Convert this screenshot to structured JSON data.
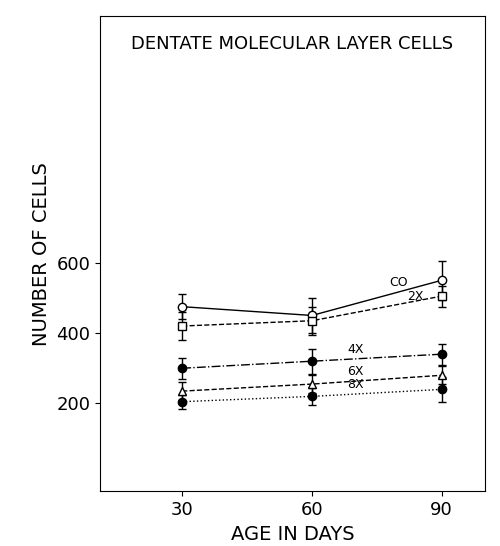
{
  "chart_data": {
    "type": "line",
    "title": "DENTATE MOLECULAR LAYER CELLS",
    "x_label": "AGE IN DAYS",
    "y_label": "NUMBER OF CELLS",
    "x": [
      30,
      60,
      90
    ],
    "xlim": [
      11,
      100
    ],
    "xticks": [
      30,
      60,
      90
    ],
    "ylim": [
      -50,
      1300
    ],
    "yticks": [
      200,
      400,
      600
    ],
    "grid": false,
    "series": [
      {
        "name": "CO",
        "color": "#000000",
        "marker": "o_open",
        "line_style": "solid",
        "values": [
          475,
          450,
          550
        ],
        "errors": [
          35,
          50,
          55
        ]
      },
      {
        "name": "2X",
        "color": "#000000",
        "marker": "s_open",
        "line_style": "dashed",
        "values": [
          420,
          435,
          505
        ],
        "errors": [
          40,
          40,
          30
        ]
      },
      {
        "name": "4X",
        "color": "#000000",
        "marker": "o_filled",
        "line_style": "dashdot",
        "values": [
          300,
          320,
          340
        ],
        "errors": [
          30,
          35,
          30
        ]
      },
      {
        "name": "6X",
        "color": "#000000",
        "marker": "^_open",
        "line_style": "dashed",
        "values": [
          235,
          255,
          280
        ],
        "errors": [
          25,
          25,
          25
        ]
      },
      {
        "name": "8X",
        "color": "#000000",
        "marker": "o_filled",
        "line_style": "dotted",
        "values": [
          205,
          220,
          240
        ],
        "errors": [
          20,
          25,
          35
        ]
      }
    ]
  }
}
